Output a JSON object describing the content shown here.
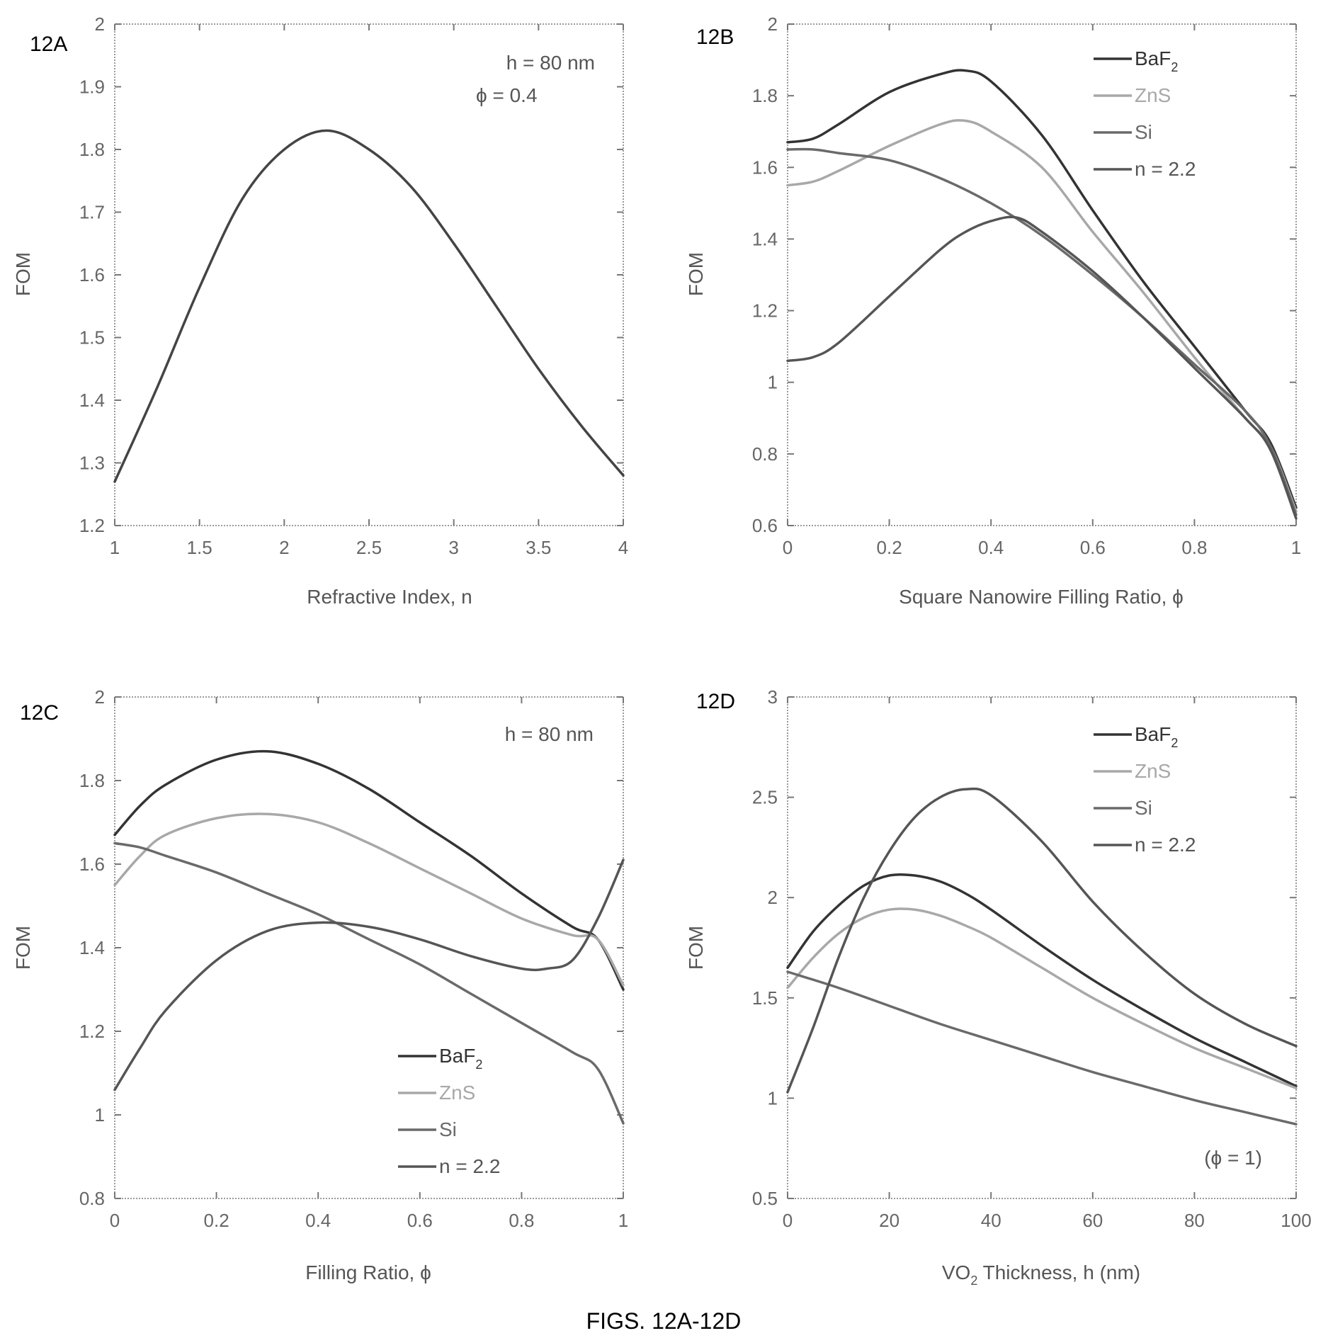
{
  "caption": "FIGS. 12A-12D",
  "colors": {
    "BaF2": "#333333",
    "ZnS": "#a8a8a8",
    "Si": "#6a6a6a",
    "n22": "#555555",
    "single": "#444444"
  },
  "chart_data": [
    {
      "panel": "12A",
      "type": "line",
      "xlabel": "Refractive Index, n",
      "ylabel": "FOM",
      "xlim": [
        1,
        4
      ],
      "ylim": [
        1.2,
        2
      ],
      "xticks": [
        "1",
        "1.5",
        "2",
        "2.5",
        "3",
        "3.5",
        "4"
      ],
      "xtick_values": [
        1,
        1.5,
        2,
        2.5,
        3,
        3.5,
        4
      ],
      "yticks": [
        "1.2",
        "1.3",
        "1.4",
        "1.5",
        "1.6",
        "1.7",
        "1.8",
        "1.9",
        "2"
      ],
      "ytick_values": [
        1.2,
        1.3,
        1.4,
        1.5,
        1.6,
        1.7,
        1.8,
        1.9,
        2.0
      ],
      "annotations": [
        "h = 80 nm",
        "ϕ = 0.4"
      ],
      "legend": [],
      "series": [
        {
          "key": "single",
          "x": [
            1,
            1.25,
            1.5,
            1.75,
            2,
            2.25,
            2.5,
            2.75,
            3,
            3.25,
            3.5,
            3.75,
            4
          ],
          "y": [
            1.27,
            1.42,
            1.58,
            1.72,
            1.8,
            1.83,
            1.8,
            1.74,
            1.65,
            1.55,
            1.45,
            1.36,
            1.28
          ]
        }
      ]
    },
    {
      "panel": "12B",
      "type": "line",
      "xlabel": "Square Nanowire Filling Ratio, ϕ",
      "ylabel": "FOM",
      "xlim": [
        0,
        1
      ],
      "ylim": [
        0.6,
        2
      ],
      "xticks": [
        "0",
        "0.2",
        "0.4",
        "0.6",
        "0.8",
        "1"
      ],
      "xtick_values": [
        0,
        0.2,
        0.4,
        0.6,
        0.8,
        1
      ],
      "yticks": [
        "0.6",
        "0.8",
        "1",
        "1.2",
        "1.4",
        "1.6",
        "1.8",
        "2"
      ],
      "ytick_values": [
        0.6,
        0.8,
        1,
        1.2,
        1.4,
        1.6,
        1.8,
        2
      ],
      "annotations": [],
      "legend": [
        {
          "key": "BaF2",
          "label": "BaF",
          "sub": "2"
        },
        {
          "key": "ZnS",
          "label": "ZnS",
          "sub": ""
        },
        {
          "key": "Si",
          "label": "Si",
          "sub": ""
        },
        {
          "key": "n22",
          "label": "n = 2.2",
          "sub": ""
        }
      ],
      "series": [
        {
          "key": "BaF2",
          "x": [
            0,
            0.05,
            0.1,
            0.2,
            0.3,
            0.35,
            0.4,
            0.5,
            0.6,
            0.7,
            0.8,
            0.9,
            0.95,
            1
          ],
          "y": [
            1.67,
            1.68,
            1.72,
            1.81,
            1.86,
            1.87,
            1.84,
            1.69,
            1.48,
            1.28,
            1.1,
            0.92,
            0.83,
            0.65
          ]
        },
        {
          "key": "ZnS",
          "x": [
            0,
            0.05,
            0.1,
            0.2,
            0.3,
            0.35,
            0.4,
            0.5,
            0.6,
            0.7,
            0.8,
            0.9,
            0.95,
            1
          ],
          "y": [
            1.55,
            1.56,
            1.59,
            1.66,
            1.72,
            1.73,
            1.7,
            1.6,
            1.42,
            1.25,
            1.07,
            0.9,
            0.82,
            0.64
          ]
        },
        {
          "key": "Si",
          "x": [
            0,
            0.05,
            0.1,
            0.2,
            0.3,
            0.4,
            0.5,
            0.6,
            0.7,
            0.8,
            0.9,
            0.95,
            1
          ],
          "y": [
            1.65,
            1.65,
            1.64,
            1.62,
            1.57,
            1.5,
            1.41,
            1.3,
            1.18,
            1.05,
            0.92,
            0.82,
            0.63
          ]
        },
        {
          "key": "n22",
          "x": [
            0,
            0.05,
            0.1,
            0.2,
            0.3,
            0.35,
            0.4,
            0.45,
            0.5,
            0.6,
            0.7,
            0.8,
            0.9,
            0.95,
            1
          ],
          "y": [
            1.06,
            1.07,
            1.11,
            1.24,
            1.37,
            1.42,
            1.45,
            1.46,
            1.42,
            1.31,
            1.18,
            1.04,
            0.9,
            0.81,
            0.62
          ]
        }
      ]
    },
    {
      "panel": "12C",
      "type": "line",
      "xlabel": "Filling Ratio, ϕ",
      "ylabel": "FOM",
      "xlim": [
        0,
        1
      ],
      "ylim": [
        0.8,
        2
      ],
      "xticks": [
        "0",
        "0.2",
        "0.4",
        "0.6",
        "0.8",
        "1"
      ],
      "xtick_values": [
        0,
        0.2,
        0.4,
        0.6,
        0.8,
        1
      ],
      "yticks": [
        "0.8",
        "1",
        "1.2",
        "1.4",
        "1.6",
        "1.8",
        "2"
      ],
      "ytick_values": [
        0.8,
        1,
        1.2,
        1.4,
        1.6,
        1.8,
        2
      ],
      "annotations": [
        "h = 80 nm"
      ],
      "legend": [
        {
          "key": "BaF2",
          "label": "BaF",
          "sub": "2"
        },
        {
          "key": "ZnS",
          "label": "ZnS",
          "sub": ""
        },
        {
          "key": "Si",
          "label": "Si",
          "sub": ""
        },
        {
          "key": "n22",
          "label": "n = 2.2",
          "sub": ""
        }
      ],
      "series": [
        {
          "key": "BaF2",
          "x": [
            0,
            0.05,
            0.1,
            0.2,
            0.3,
            0.4,
            0.5,
            0.6,
            0.7,
            0.8,
            0.9,
            0.95,
            1
          ],
          "y": [
            1.67,
            1.74,
            1.79,
            1.85,
            1.87,
            1.84,
            1.78,
            1.7,
            1.62,
            1.53,
            1.45,
            1.42,
            1.3
          ]
        },
        {
          "key": "ZnS",
          "x": [
            0,
            0.05,
            0.1,
            0.2,
            0.3,
            0.4,
            0.5,
            0.6,
            0.7,
            0.8,
            0.9,
            0.95,
            1
          ],
          "y": [
            1.55,
            1.62,
            1.67,
            1.71,
            1.72,
            1.7,
            1.65,
            1.59,
            1.53,
            1.47,
            1.43,
            1.42,
            1.31
          ]
        },
        {
          "key": "Si",
          "x": [
            0,
            0.05,
            0.1,
            0.2,
            0.3,
            0.4,
            0.5,
            0.6,
            0.7,
            0.8,
            0.9,
            0.95,
            1
          ],
          "y": [
            1.65,
            1.64,
            1.62,
            1.58,
            1.53,
            1.48,
            1.42,
            1.36,
            1.29,
            1.22,
            1.15,
            1.11,
            0.98
          ]
        },
        {
          "key": "n22",
          "x": [
            0,
            0.05,
            0.1,
            0.2,
            0.3,
            0.4,
            0.5,
            0.6,
            0.7,
            0.8,
            0.85,
            0.9,
            0.95,
            1
          ],
          "y": [
            1.06,
            1.16,
            1.25,
            1.37,
            1.44,
            1.46,
            1.45,
            1.42,
            1.38,
            1.35,
            1.35,
            1.37,
            1.47,
            1.61
          ]
        }
      ]
    },
    {
      "panel": "12D",
      "type": "line",
      "xlabel": "VO",
      "xlabel_sub": "2",
      "xlabel_rest": " Thickness, h (nm)",
      "ylabel": "FOM",
      "xlim": [
        0,
        100
      ],
      "ylim": [
        0.5,
        3
      ],
      "xticks": [
        "0",
        "20",
        "40",
        "60",
        "80",
        "100"
      ],
      "xtick_values": [
        0,
        20,
        40,
        60,
        80,
        100
      ],
      "yticks": [
        "0.5",
        "1",
        "1.5",
        "2",
        "2.5",
        "3"
      ],
      "ytick_values": [
        0.5,
        1,
        1.5,
        2,
        2.5,
        3
      ],
      "annotations": [
        "(ϕ = 1)"
      ],
      "legend": [
        {
          "key": "BaF2",
          "label": "BaF",
          "sub": "2"
        },
        {
          "key": "ZnS",
          "label": "ZnS",
          "sub": ""
        },
        {
          "key": "Si",
          "label": "Si",
          "sub": ""
        },
        {
          "key": "n22",
          "label": "n = 2.2",
          "sub": ""
        }
      ],
      "series": [
        {
          "key": "BaF2",
          "x": [
            0,
            5,
            10,
            15,
            20,
            25,
            30,
            35,
            40,
            50,
            60,
            70,
            80,
            90,
            100
          ],
          "y": [
            1.65,
            1.83,
            1.96,
            2.06,
            2.11,
            2.11,
            2.08,
            2.02,
            1.94,
            1.76,
            1.59,
            1.44,
            1.3,
            1.18,
            1.06
          ]
        },
        {
          "key": "ZnS",
          "x": [
            0,
            5,
            10,
            15,
            20,
            25,
            30,
            35,
            40,
            50,
            60,
            70,
            80,
            90,
            100
          ],
          "y": [
            1.55,
            1.7,
            1.82,
            1.9,
            1.94,
            1.94,
            1.91,
            1.86,
            1.8,
            1.65,
            1.5,
            1.37,
            1.25,
            1.15,
            1.05
          ]
        },
        {
          "key": "Si",
          "x": [
            0,
            10,
            20,
            30,
            40,
            50,
            60,
            70,
            80,
            90,
            100
          ],
          "y": [
            1.63,
            1.55,
            1.46,
            1.37,
            1.29,
            1.21,
            1.13,
            1.06,
            0.99,
            0.93,
            0.87
          ]
        },
        {
          "key": "n22",
          "x": [
            0,
            5,
            10,
            15,
            20,
            25,
            30,
            35,
            40,
            50,
            60,
            70,
            80,
            90,
            100
          ],
          "y": [
            1.03,
            1.35,
            1.7,
            2.0,
            2.23,
            2.4,
            2.5,
            2.54,
            2.51,
            2.28,
            1.98,
            1.73,
            1.52,
            1.37,
            1.26
          ]
        }
      ]
    }
  ]
}
